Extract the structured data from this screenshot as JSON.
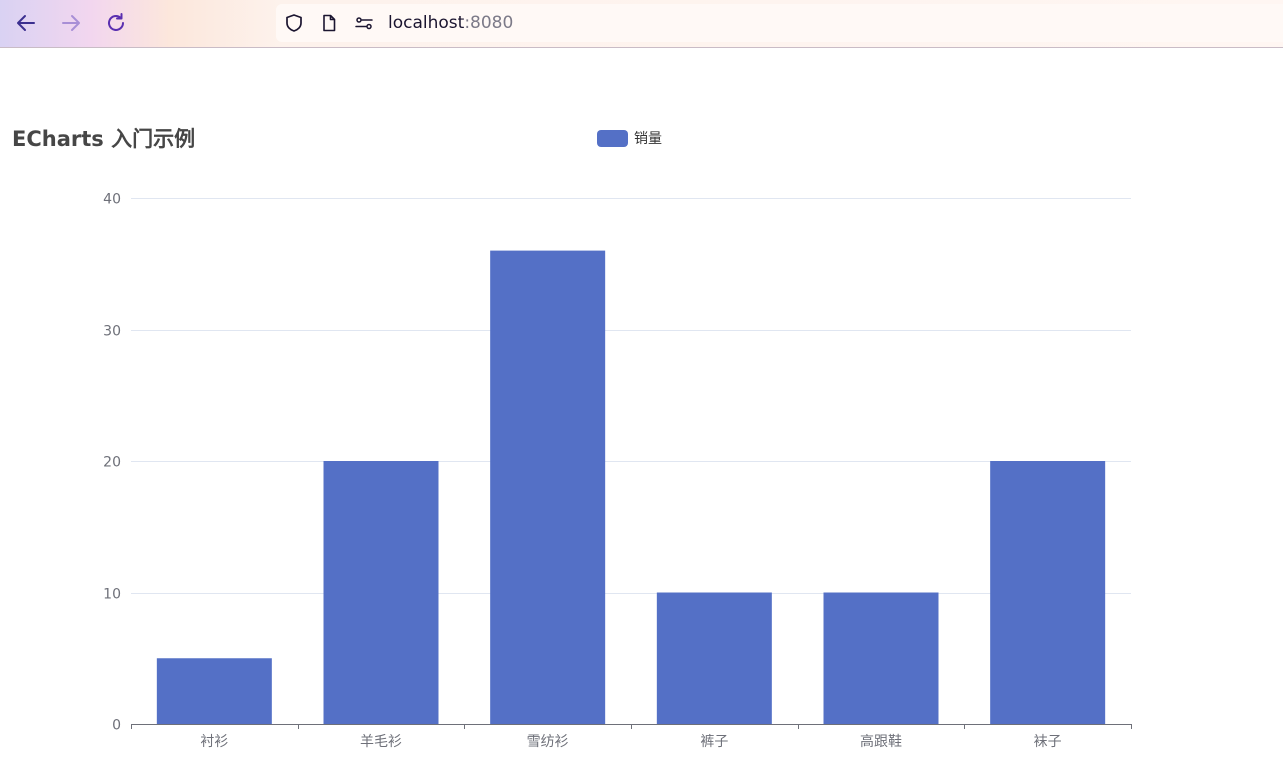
{
  "browser": {
    "url_host": "localhost",
    "url_port": ":8080"
  },
  "chart": {
    "title": "ECharts 入门示例",
    "legend_label": "销量",
    "bar_color": "#5470c6"
  },
  "chart_data": {
    "type": "bar",
    "title": "ECharts 入门示例",
    "categories": [
      "衬衫",
      "羊毛衫",
      "雪纺衫",
      "裤子",
      "高跟鞋",
      "袜子"
    ],
    "series": [
      {
        "name": "销量",
        "values": [
          5,
          20,
          36,
          10,
          10,
          20
        ]
      }
    ],
    "ylim": [
      0,
      40
    ],
    "yticks": [
      0,
      10,
      20,
      30,
      40
    ],
    "xlabel": "",
    "ylabel": "",
    "grid": true,
    "legend_position": "top-center"
  }
}
